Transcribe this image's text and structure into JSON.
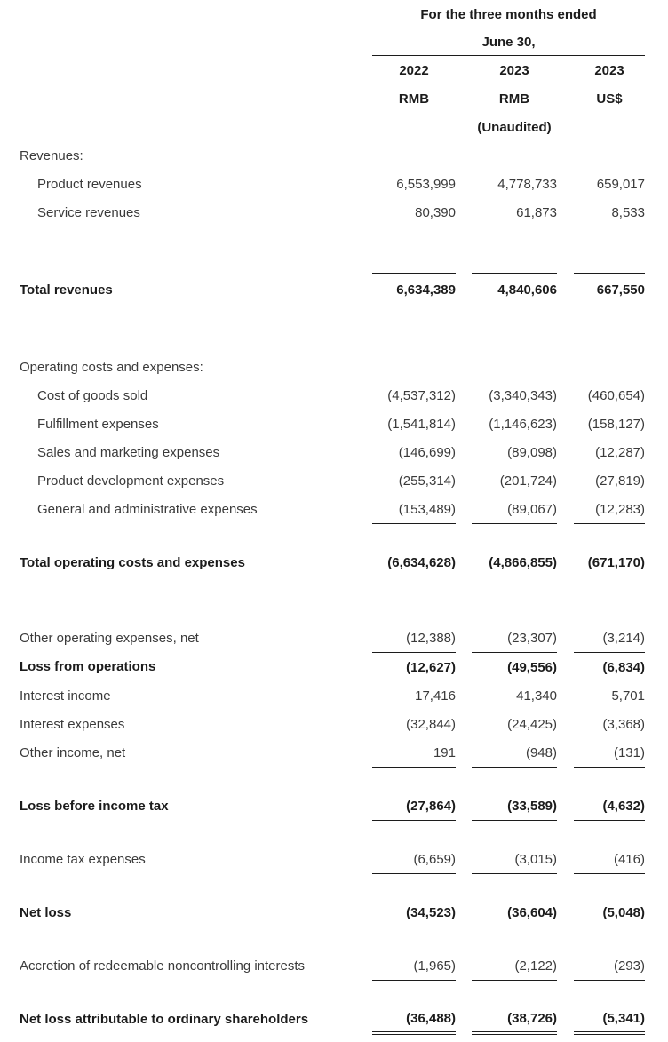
{
  "header": {
    "period_line1": "For the three months ended",
    "period_line2": "June 30,",
    "columns": [
      {
        "year": "2022",
        "currency": "RMB",
        "note": ""
      },
      {
        "year": "2023",
        "currency": "RMB",
        "note": "(Unaudited)"
      },
      {
        "year": "2023",
        "currency": "US$",
        "note": ""
      }
    ]
  },
  "rows": [
    {
      "label": "Revenues:",
      "values": [
        "",
        "",
        ""
      ],
      "style": "section",
      "rule": "none",
      "gap_before": "none"
    },
    {
      "label": "Product revenues",
      "values": [
        "6,553,999",
        "4,778,733",
        "659,017"
      ],
      "style": "indent",
      "rule": "none",
      "gap_before": "none"
    },
    {
      "label": "Service revenues",
      "values": [
        "80,390",
        "61,873",
        "8,533"
      ],
      "style": "indent",
      "rule": "none",
      "gap_before": "none"
    },
    {
      "label": "Total revenues",
      "values": [
        "6,634,389",
        "4,840,606",
        "667,550"
      ],
      "style": "total",
      "rule": "top-bottom",
      "gap_before": "large"
    },
    {
      "label": "Operating costs and expenses:",
      "values": [
        "",
        "",
        ""
      ],
      "style": "section",
      "rule": "none",
      "gap_before": "large"
    },
    {
      "label": "Cost of goods sold",
      "values": [
        "(4,537,312)",
        "(3,340,343)",
        "(460,654)"
      ],
      "style": "indent",
      "rule": "none",
      "gap_before": "none"
    },
    {
      "label": "Fulfillment expenses",
      "values": [
        "(1,541,814)",
        "(1,146,623)",
        "(158,127)"
      ],
      "style": "indent",
      "rule": "none",
      "gap_before": "none"
    },
    {
      "label": "Sales and marketing expenses",
      "values": [
        "(146,699)",
        "(89,098)",
        "(12,287)"
      ],
      "style": "indent",
      "rule": "none",
      "gap_before": "none"
    },
    {
      "label": "Product development expenses",
      "values": [
        "(255,314)",
        "(201,724)",
        "(27,819)"
      ],
      "style": "indent",
      "rule": "none",
      "gap_before": "none"
    },
    {
      "label": "General and administrative expenses",
      "values": [
        "(153,489)",
        "(89,067)",
        "(12,283)"
      ],
      "style": "indent",
      "rule": "bottom",
      "gap_before": "none"
    },
    {
      "label": "Total operating costs and expenses",
      "values": [
        "(6,634,628)",
        "(4,866,855)",
        "(671,170)"
      ],
      "style": "total",
      "rule": "bottom",
      "gap_before": "small"
    },
    {
      "label": "Other operating expenses, net",
      "values": [
        "(12,388)",
        "(23,307)",
        "(3,214)"
      ],
      "style": "item",
      "rule": "bottom",
      "gap_before": "large"
    },
    {
      "label": "Loss from operations",
      "values": [
        "(12,627)",
        "(49,556)",
        "(6,834)"
      ],
      "style": "total",
      "rule": "none",
      "gap_before": "none"
    },
    {
      "label": "Interest income",
      "values": [
        "17,416",
        "41,340",
        "5,701"
      ],
      "style": "item",
      "rule": "none",
      "gap_before": "none"
    },
    {
      "label": "Interest expenses",
      "values": [
        "(32,844)",
        "(24,425)",
        "(3,368)"
      ],
      "style": "item",
      "rule": "none",
      "gap_before": "none"
    },
    {
      "label": "Other income, net",
      "values": [
        "191",
        "(948)",
        "(131)"
      ],
      "style": "item",
      "rule": "bottom",
      "gap_before": "none"
    },
    {
      "label": "Loss before income tax",
      "values": [
        "(27,864)",
        "(33,589)",
        "(4,632)"
      ],
      "style": "total",
      "rule": "bottom",
      "gap_before": "small"
    },
    {
      "label": "Income tax expenses",
      "values": [
        "(6,659)",
        "(3,015)",
        "(416)"
      ],
      "style": "item",
      "rule": "bottom",
      "gap_before": "small"
    },
    {
      "label": "Net loss",
      "values": [
        "(34,523)",
        "(36,604)",
        "(5,048)"
      ],
      "style": "total",
      "rule": "bottom",
      "gap_before": "small"
    },
    {
      "label": "Accretion of redeemable noncontrolling interests",
      "values": [
        "(1,965)",
        "(2,122)",
        "(293)"
      ],
      "style": "item",
      "rule": "bottom",
      "gap_before": "small"
    },
    {
      "label": "Net loss attributable to ordinary shareholders",
      "values": [
        "(36,488)",
        "(38,726)",
        "(5,341)"
      ],
      "style": "total",
      "rule": "double",
      "gap_before": "small"
    }
  ]
}
